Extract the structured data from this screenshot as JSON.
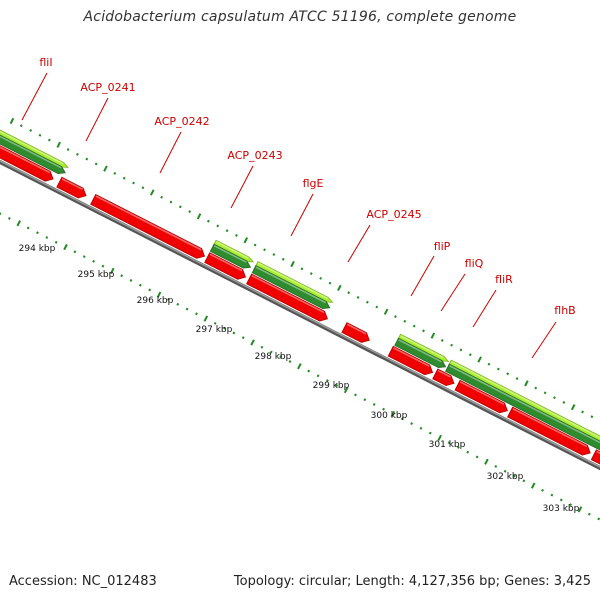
{
  "title": "Acidobacterium capsulatum ATCC 51196, complete genome",
  "footer": {
    "accession": "Accession: NC_012483",
    "summary": "Topology: circular; Length: 4,127,356 bp; Genes: 3,425"
  },
  "colors": {
    "cds": "#f00000",
    "gene": "#2e8b2e",
    "gene_light": "#a8ee2a",
    "label": "#cc0000",
    "tick": "#228b22",
    "backbone": "#808080"
  },
  "genes": [
    {
      "name": "fliI"
    },
    {
      "name": "ACP_0241"
    },
    {
      "name": "ACP_0242"
    },
    {
      "name": "ACP_0243"
    },
    {
      "name": "flgE"
    },
    {
      "name": "ACP_0245"
    },
    {
      "name": "fliP"
    },
    {
      "name": "fliQ"
    },
    {
      "name": "fliR"
    },
    {
      "name": "flhB"
    }
  ],
  "scale_labels": [
    "294 kbp",
    "295 kbp",
    "296 kbp",
    "297 kbp",
    "298 kbp",
    "299 kbp",
    "300 kbp",
    "301 kbp",
    "302 kbp",
    "303 kbp"
  ]
}
